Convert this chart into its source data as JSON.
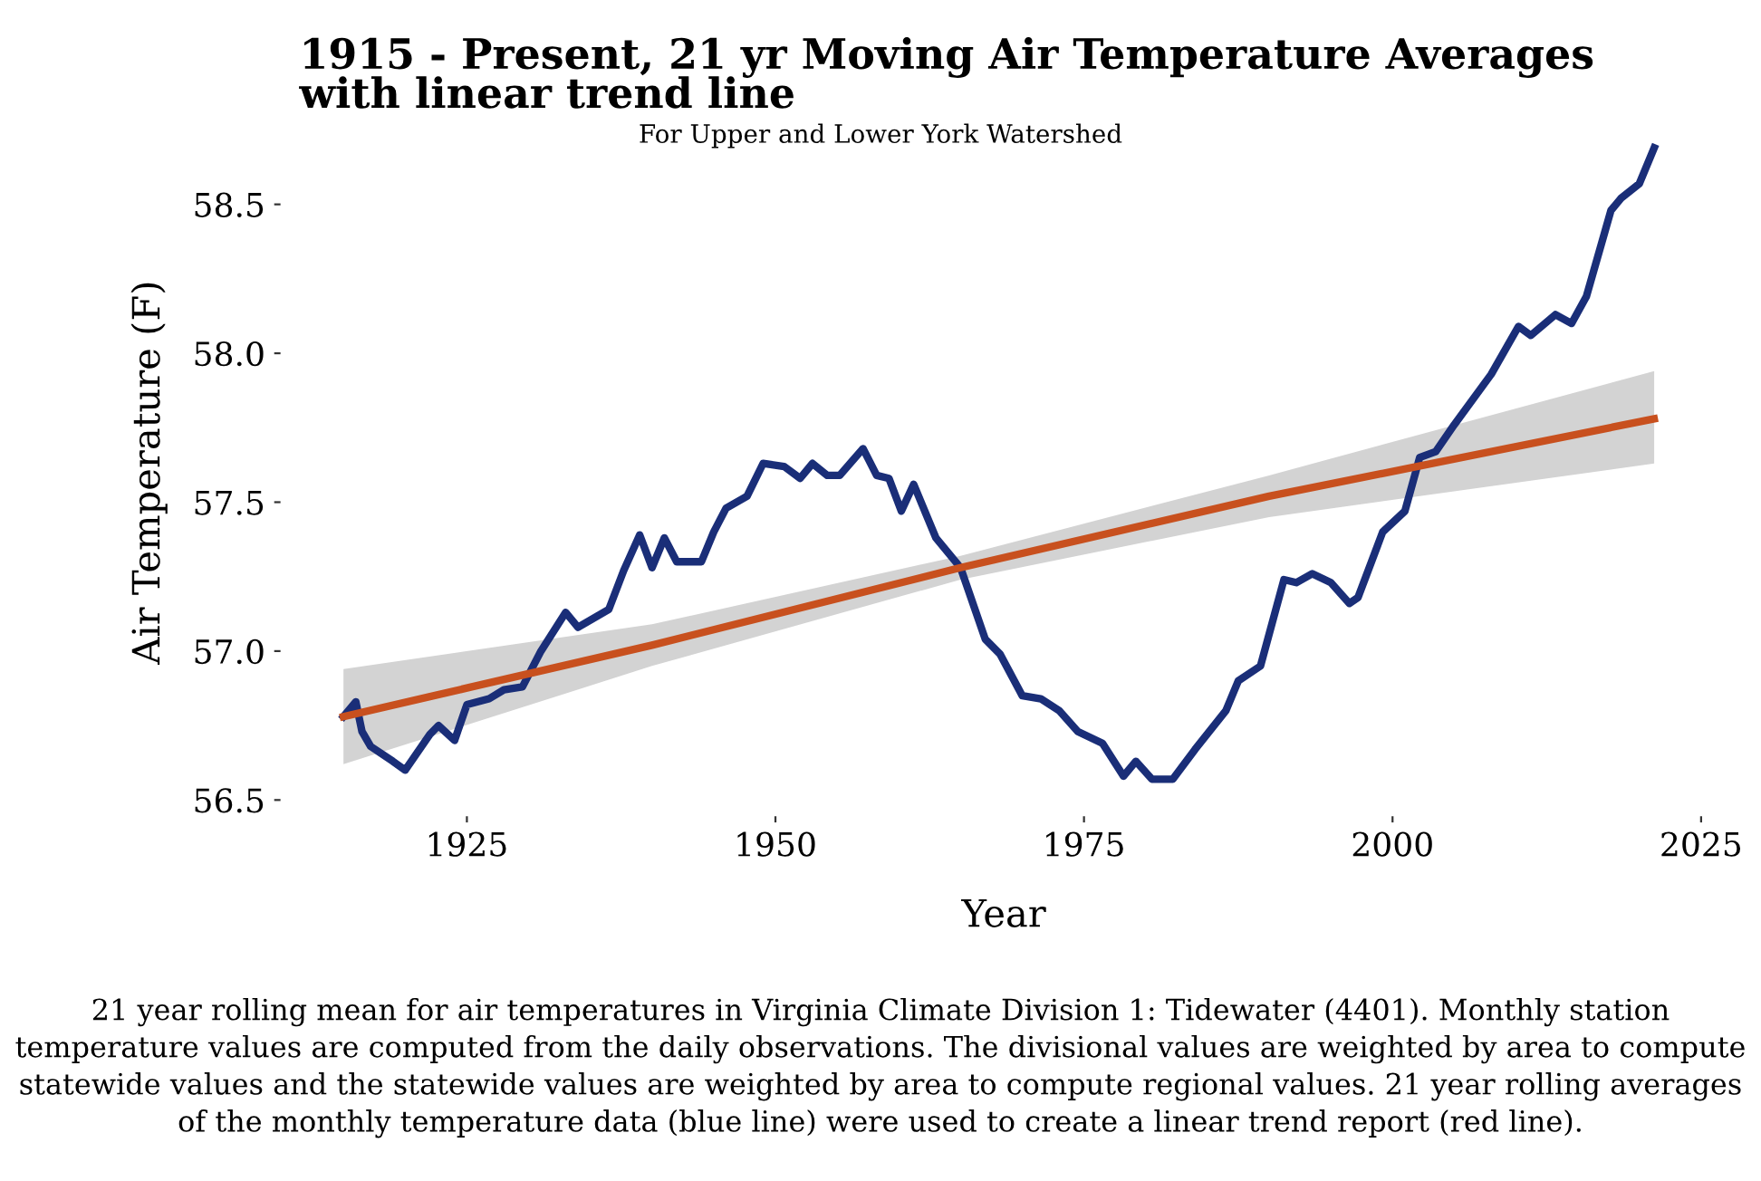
{
  "chart_data": {
    "type": "line",
    "title": "1915 - Present, 21 yr Moving Air Temperature Averages\nwith linear trend line",
    "subtitle": "For Upper and Lower York Watershed",
    "xlabel": "Year",
    "ylabel": "Air Temperature (F)",
    "xlim": [
      1910,
      2027
    ],
    "ylim": [
      56.45,
      58.75
    ],
    "xticks": [
      1925,
      1950,
      1975,
      2000,
      2025
    ],
    "yticks": [
      56.5,
      {
        "value": 57,
        "label": "57.0"
      },
      57.5,
      {
        "value": 58,
        "label": "58.0"
      },
      58.5
    ],
    "grid": false,
    "legend": false,
    "series": [
      {
        "color": "#1a2e78",
        "x": [
          1915,
          1916,
          1916.5,
          1917.2,
          1919,
          1920,
          1922,
          1922.7,
          1924,
          1925,
          1926.8,
          1928,
          1929.5,
          1931,
          1933,
          1934,
          1936.5,
          1937.7,
          1939,
          1940,
          1941,
          1942,
          1944,
          1945,
          1946,
          1947.7,
          1949,
          1950.7,
          1952,
          1953,
          1954.2,
          1955.2,
          1957.1,
          1958.2,
          1959.2,
          1960.2,
          1961.2,
          1963,
          1965,
          1967,
          1968.2,
          1970,
          1971.5,
          1973,
          1974.5,
          1976.5,
          1978.2,
          1979.2,
          1980.5,
          1982.2,
          1984,
          1986.5,
          1987.5,
          1989.3,
          1991.2,
          1992.2,
          1993.5,
          1995,
          1996.5,
          1997.2,
          1999.2,
          2001,
          2002.2,
          2003.5,
          2005,
          2008,
          2010.2,
          2011.2,
          2013.2,
          2014.5,
          2015.7,
          2017.7,
          2018.5,
          2020,
          2021.2
        ],
        "values": [
          56.78,
          56.83,
          56.73,
          56.68,
          56.63,
          56.6,
          56.72,
          56.75,
          56.7,
          56.82,
          56.84,
          56.87,
          56.88,
          57.0,
          57.13,
          57.08,
          57.14,
          57.27,
          57.39,
          57.28,
          57.38,
          57.3,
          57.3,
          57.4,
          57.48,
          57.52,
          57.63,
          57.62,
          57.58,
          57.63,
          57.59,
          57.59,
          57.68,
          57.59,
          57.58,
          57.47,
          57.56,
          57.38,
          57.28,
          57.04,
          56.99,
          56.85,
          56.84,
          56.8,
          56.73,
          56.69,
          56.58,
          56.63,
          56.57,
          56.57,
          56.67,
          56.8,
          56.9,
          56.95,
          57.24,
          57.23,
          57.26,
          57.23,
          57.16,
          57.18,
          57.4,
          57.47,
          57.65,
          57.67,
          57.76,
          57.93,
          58.09,
          58.06,
          58.13,
          58.1,
          58.19,
          58.48,
          58.52,
          58.57,
          58.69
        ]
      },
      {
        "color": "#c8501e",
        "x": [
          1915,
          1940,
          1965,
          1990,
          2021.2
        ],
        "values": [
          56.78,
          57.02,
          57.28,
          57.52,
          57.78
        ],
        "lower": [
          56.62,
          56.95,
          57.24,
          57.45,
          57.63
        ],
        "upper": [
          56.94,
          57.09,
          57.32,
          57.59,
          57.94
        ]
      }
    ],
    "annotations": [
      "21 year rolling mean for air temperatures in Virginia Climate Division 1: Tidewater (4401). Monthly station temperature values are computed from the daily observations. The divisional values are weighted by area to compute statewide values and the statewide values are weighted by area to compute regional values. 21 year rolling averages of the monthly temperature data (blue line) were used to create a linear trend report (red line)."
    ]
  }
}
